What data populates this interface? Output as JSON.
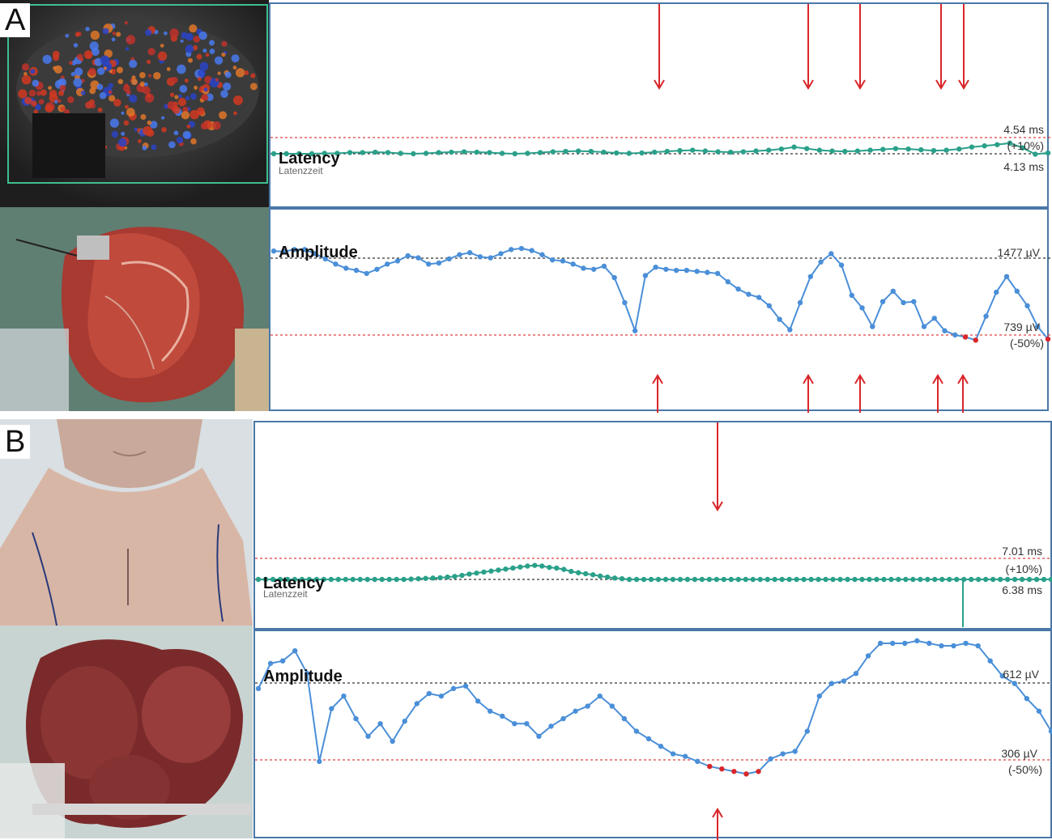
{
  "figure": {
    "panels": [
      {
        "label": "A",
        "latency": {
          "title": "Latency",
          "subtitle": "Latenzzeit",
          "upper_value": "4.54 ms",
          "upper_pct": "(+10%)",
          "baseline_value": "4.13 ms"
        },
        "amplitude": {
          "title": "Amplitude",
          "baseline_value": "1477 µV",
          "lower_value": "739 µV",
          "lower_pct": "(-50%)"
        }
      },
      {
        "label": "B",
        "latency": {
          "title": "Latency",
          "subtitle": "Latenzzeit",
          "upper_value": "7.01 ms",
          "upper_pct": "(+10%)",
          "baseline_value": "6.38 ms"
        },
        "amplitude": {
          "title": "Amplitude",
          "baseline_value": "612 µV",
          "lower_value": "306 µV",
          "lower_pct": "(-50%)"
        }
      }
    ]
  },
  "colors": {
    "latency_trace": "#2aa08a",
    "amplitude_trace": "#4a8fd8",
    "alarm_points": "#d9262a",
    "threshold_line": "#e04040",
    "baseline_line": "#333333",
    "frame": "#4a78a8"
  },
  "chart_data": [
    {
      "type": "line",
      "panel": "A",
      "series": [
        {
          "name": "Latency",
          "unit": "ms",
          "values": [
            4.13,
            4.13,
            4.13,
            4.13,
            4.14,
            4.14,
            4.16,
            4.16,
            4.17,
            4.16,
            4.14,
            4.13,
            4.14,
            4.16,
            4.17,
            4.18,
            4.17,
            4.16,
            4.14,
            4.13,
            4.14,
            4.16,
            4.18,
            4.19,
            4.2,
            4.19,
            4.17,
            4.15,
            4.14,
            4.15,
            4.17,
            4.19,
            4.21,
            4.22,
            4.2,
            4.18,
            4.17,
            4.18,
            4.2,
            4.22,
            4.25,
            4.3,
            4.26,
            4.22,
            4.2,
            4.19,
            4.2,
            4.22,
            4.24,
            4.26,
            4.25,
            4.23,
            4.21,
            4.22,
            4.25,
            4.3,
            4.33,
            4.36,
            4.4,
            4.28,
            4.12,
            4.15
          ]
        },
        {
          "name": "Amplitude",
          "unit": "µV",
          "values": [
            1545,
            1540,
            1560,
            1560,
            1520,
            1470,
            1420,
            1380,
            1360,
            1330,
            1370,
            1420,
            1450,
            1500,
            1480,
            1420,
            1430,
            1470,
            1510,
            1530,
            1490,
            1480,
            1520,
            1560,
            1570,
            1550,
            1510,
            1460,
            1450,
            1420,
            1380,
            1370,
            1400,
            1290,
            1050,
            780,
            1310,
            1390,
            1370,
            1360,
            1360,
            1350,
            1340,
            1330,
            1250,
            1180,
            1130,
            1100,
            1020,
            890,
            790,
            1050,
            1300,
            1440,
            1520,
            1410,
            1120,
            1000,
            820,
            1060,
            1160,
            1050,
            1060,
            820,
            900,
            780,
            740,
            720,
            690,
            920,
            1150,
            1300,
            1160,
            1020,
            820,
            700
          ]
        }
      ],
      "thresholds": {
        "latency_upper": 4.54,
        "latency_baseline": 4.13,
        "amplitude_baseline": 1477,
        "amplitude_lower": 739
      }
    },
    {
      "type": "line",
      "panel": "B",
      "series": [
        {
          "name": "Latency",
          "unit": "ms",
          "values": [
            6.38,
            6.38,
            6.38,
            6.38,
            6.38,
            6.38,
            6.38,
            6.38,
            6.38,
            6.38,
            6.38,
            6.38,
            6.38,
            6.38,
            6.38,
            6.38,
            6.38,
            6.38,
            6.38,
            6.38,
            6.38,
            6.39,
            6.4,
            6.41,
            6.42,
            6.43,
            6.45,
            6.47,
            6.5,
            6.54,
            6.57,
            6.6,
            6.63,
            6.66,
            6.69,
            6.72,
            6.75,
            6.78,
            6.8,
            6.78,
            6.74,
            6.72,
            6.68,
            6.62,
            6.58,
            6.55,
            6.52,
            6.48,
            6.45,
            6.42,
            6.4,
            6.38,
            6.38,
            6.38,
            6.38,
            6.38,
            6.38,
            6.38,
            6.38,
            6.38,
            6.38,
            6.38,
            6.38,
            6.38,
            6.38,
            6.38,
            6.38,
            6.38,
            6.38,
            6.38,
            6.38,
            6.38,
            6.38,
            6.38,
            6.38,
            6.38,
            6.38,
            6.38,
            6.38,
            6.38,
            6.38,
            6.38,
            6.38,
            6.38,
            6.38,
            6.38,
            6.38,
            6.38,
            6.38,
            6.38,
            6.38,
            6.38,
            6.38,
            6.38,
            6.38,
            6.38,
            6.38,
            6.38,
            6.38,
            6.38,
            6.38,
            6.38,
            6.38,
            6.38,
            6.38,
            6.38,
            6.38,
            6.38,
            6.38,
            6.38
          ]
        },
        {
          "name": "Amplitude",
          "unit": "µV",
          "values": [
            590,
            690,
            700,
            740,
            650,
            300,
            510,
            560,
            470,
            400,
            450,
            380,
            460,
            530,
            570,
            560,
            590,
            600,
            540,
            500,
            480,
            450,
            450,
            400,
            440,
            470,
            500,
            520,
            560,
            520,
            470,
            420,
            390,
            360,
            330,
            320,
            300,
            280,
            270,
            260,
            250,
            260,
            310,
            330,
            340,
            420,
            560,
            610,
            620,
            650,
            720,
            770,
            770,
            770,
            780,
            770,
            760,
            760,
            770,
            760,
            700,
            640,
            610,
            550,
            500,
            420
          ]
        }
      ],
      "thresholds": {
        "latency_upper": 7.01,
        "latency_baseline": 6.38,
        "amplitude_baseline": 612,
        "amplitude_lower": 306
      }
    }
  ]
}
